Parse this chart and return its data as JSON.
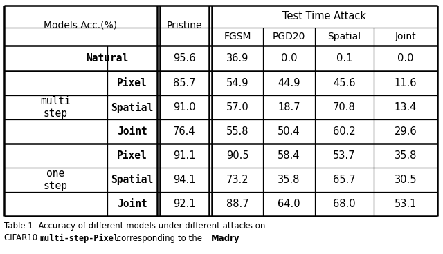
{
  "caption_line1": "Table 1. Accuracy of different models under different attacks on",
  "caption_line2_pre": "CIFAR10.  ",
  "caption_line2_mono": "multi-step-Pixel",
  "caption_line2_mid": " corresponding to the  ",
  "caption_line2_bold": "Madry",
  "col_headers_2": [
    "FGSM",
    "PGD20",
    "Spatial",
    "Joint"
  ],
  "natural_vals": [
    "95.6",
    "36.9",
    "0.0",
    "0.1",
    "0.0"
  ],
  "multi_subgroups": [
    "Pixel",
    "Spatial",
    "Joint"
  ],
  "multi_data": [
    [
      "85.7",
      "54.9",
      "44.9",
      "45.6",
      "11.6"
    ],
    [
      "91.0",
      "57.0",
      "18.7",
      "70.8",
      "13.4"
    ],
    [
      "76.4",
      "55.8",
      "50.4",
      "60.2",
      "29.6"
    ]
  ],
  "one_subgroups": [
    "Pixel",
    "Spatial",
    "Joint"
  ],
  "one_data": [
    [
      "91.1",
      "90.5",
      "58.4",
      "53.7",
      "35.8"
    ],
    [
      "94.1",
      "73.2",
      "35.8",
      "65.7",
      "30.5"
    ],
    [
      "92.1",
      "88.7",
      "64.0",
      "68.0",
      "53.1"
    ]
  ],
  "bg_color": "#ffffff"
}
